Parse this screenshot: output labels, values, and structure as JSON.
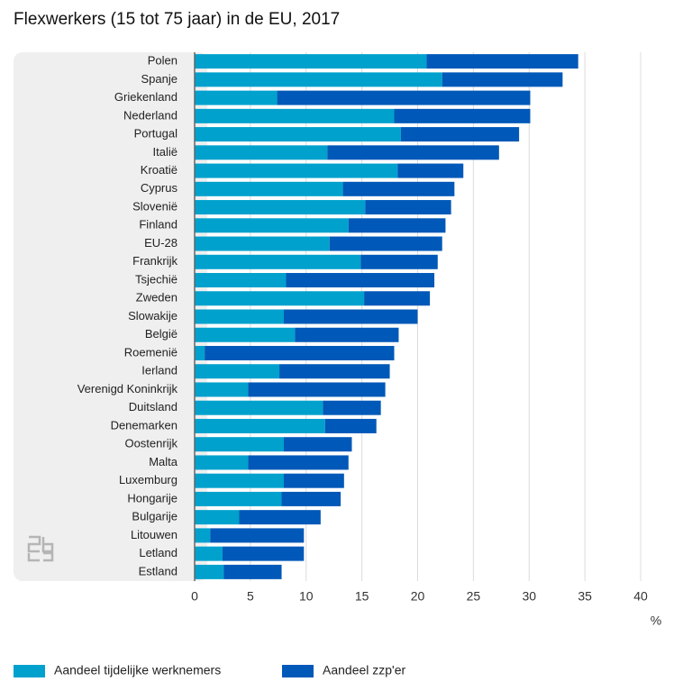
{
  "chart_data": {
    "type": "stacked-barh",
    "title": "Flexwerkers (15 tot 75 jaar) in de EU, 2017",
    "xlabel": "%",
    "categories": [
      "Polen",
      "Spanje",
      "Griekenland",
      "Nederland",
      "Portugal",
      "Italië",
      "Kroatië",
      "Cyprus",
      "Slovenië",
      "Finland",
      "EU-28",
      "Frankrijk",
      "Tsjechië",
      "Zweden",
      "Slowakije",
      "België",
      "Roemenië",
      "Ierland",
      "Verenigd Koninkrijk",
      "Duitsland",
      "Denemarken",
      "Oostenrijk",
      "Malta",
      "Luxemburg",
      "Hongarije",
      "Bulgarije",
      "Litouwen",
      "Letland",
      "Estland"
    ],
    "series": [
      {
        "name": "Aandeel tijdelijke werknemers",
        "color": "#00a1cd",
        "values": [
          20.8,
          22.2,
          7.4,
          17.9,
          18.5,
          11.9,
          18.2,
          13.3,
          15.3,
          13.8,
          12.1,
          14.9,
          8.2,
          15.2,
          8.0,
          9.0,
          0.9,
          7.6,
          4.8,
          11.5,
          11.7,
          8.0,
          4.8,
          8.0,
          7.8,
          4.0,
          1.4,
          2.5,
          2.6
        ]
      },
      {
        "name": "Aandeel zzp'er",
        "color": "#0058b8",
        "values": [
          13.6,
          10.8,
          22.7,
          12.2,
          10.6,
          15.4,
          5.9,
          10.0,
          7.7,
          8.7,
          10.1,
          6.9,
          13.3,
          5.9,
          12.0,
          9.3,
          17.0,
          9.9,
          12.3,
          5.2,
          4.6,
          6.1,
          9.0,
          5.4,
          5.3,
          7.3,
          8.4,
          7.3,
          5.2
        ]
      }
    ],
    "xlim": [
      0,
      40
    ],
    "xticks": [
      0,
      5,
      10,
      15,
      20,
      25,
      30,
      35,
      40
    ],
    "grid": true
  }
}
